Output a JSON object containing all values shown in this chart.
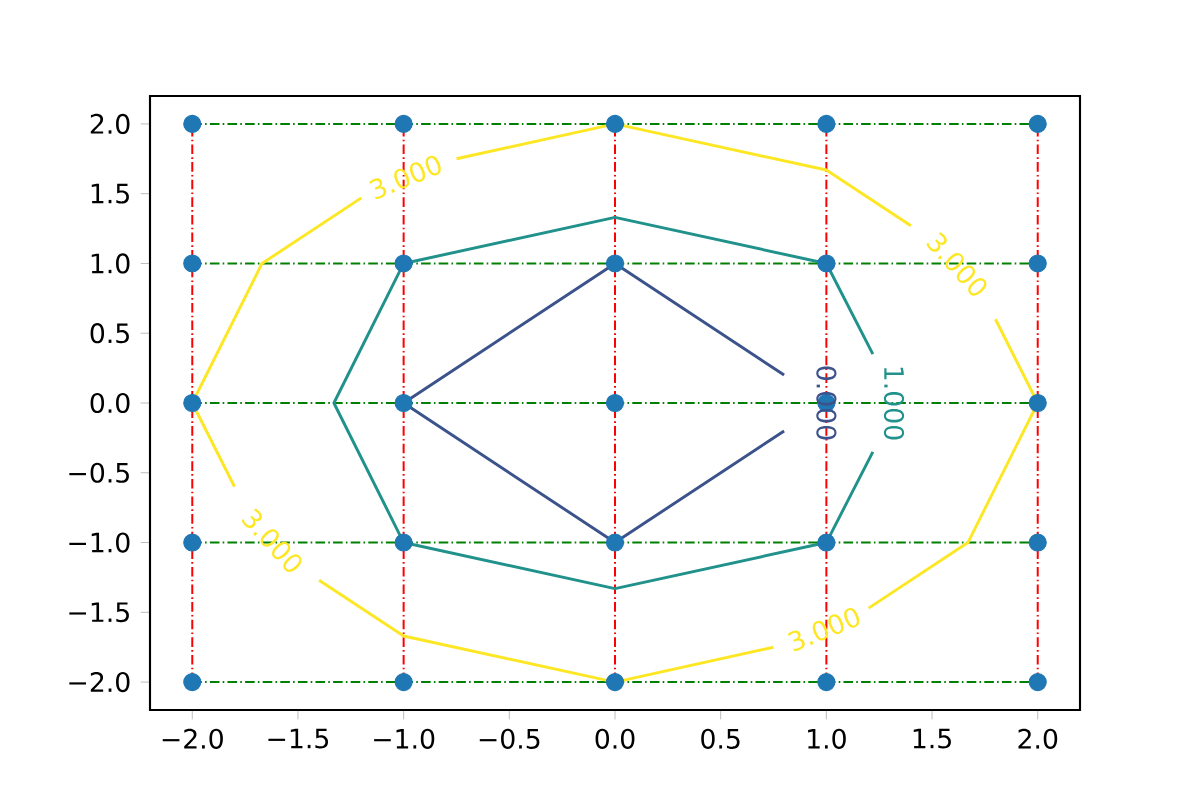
{
  "chart_data": {
    "type": "line",
    "xlim": [
      -2.2,
      2.2
    ],
    "ylim": [
      -2.2,
      2.2
    ],
    "xticks": [
      {
        "value": -2.0,
        "label": "−2.0"
      },
      {
        "value": -1.5,
        "label": "−1.5"
      },
      {
        "value": -1.0,
        "label": "−1.0"
      },
      {
        "value": -0.5,
        "label": "−0.5"
      },
      {
        "value": 0.0,
        "label": "0.0"
      },
      {
        "value": 0.5,
        "label": "0.5"
      },
      {
        "value": 1.0,
        "label": "1.0"
      },
      {
        "value": 1.5,
        "label": "1.5"
      },
      {
        "value": 2.0,
        "label": "2.0"
      }
    ],
    "yticks": [
      {
        "value": -2.0,
        "label": "−2.0"
      },
      {
        "value": -1.5,
        "label": "−1.5"
      },
      {
        "value": -1.0,
        "label": "−1.0"
      },
      {
        "value": -0.5,
        "label": "−0.5"
      },
      {
        "value": 0.0,
        "label": "0.0"
      },
      {
        "value": 0.5,
        "label": "0.5"
      },
      {
        "value": 1.0,
        "label": "1.0"
      },
      {
        "value": 1.5,
        "label": "1.5"
      },
      {
        "value": 2.0,
        "label": "2.0"
      }
    ],
    "grid": false,
    "series": [
      {
        "color": "#ff0000",
        "line_style": "dashdot",
        "x": [
          -2,
          -2
        ],
        "values": [
          -2,
          2
        ]
      },
      {
        "color": "#ff0000",
        "line_style": "dashdot",
        "x": [
          -1,
          -1
        ],
        "values": [
          -2,
          2
        ]
      },
      {
        "color": "#ff0000",
        "line_style": "dashdot",
        "x": [
          0,
          0
        ],
        "values": [
          -2,
          2
        ]
      },
      {
        "color": "#ff0000",
        "line_style": "dashdot",
        "x": [
          1,
          1
        ],
        "values": [
          -2,
          2
        ]
      },
      {
        "color": "#ff0000",
        "line_style": "dashdot",
        "x": [
          2,
          2
        ],
        "values": [
          -2,
          2
        ]
      },
      {
        "color": "#008000",
        "line_style": "dashdot",
        "x": [
          -2,
          2
        ],
        "values": [
          -2,
          -2
        ]
      },
      {
        "color": "#008000",
        "line_style": "dashdot",
        "x": [
          -2,
          2
        ],
        "values": [
          -1,
          -1
        ]
      },
      {
        "color": "#008000",
        "line_style": "dashdot",
        "x": [
          -2,
          2
        ],
        "values": [
          0,
          0
        ]
      },
      {
        "color": "#008000",
        "line_style": "dashdot",
        "x": [
          -2,
          2
        ],
        "values": [
          1,
          1
        ]
      },
      {
        "color": "#008000",
        "line_style": "dashdot",
        "x": [
          -2,
          2
        ],
        "values": [
          2,
          2
        ]
      },
      {
        "color": "#3b528b",
        "line_style": "solid",
        "x": [
          0.8,
          0,
          -1,
          0,
          0.8
        ],
        "values": [
          0.2,
          1,
          0,
          -1,
          -0.2
        ]
      },
      {
        "color": "#21918c",
        "line_style": "solid",
        "x": [
          1.22,
          1,
          0,
          -1,
          -1.33,
          -1,
          0,
          1,
          1.22
        ],
        "values": [
          0.35,
          1,
          1.33,
          1,
          0,
          -1,
          -1.33,
          -1,
          -0.35
        ]
      },
      {
        "color": "#fde725",
        "line_style": "solid",
        "x": [
          -0.75,
          0,
          1,
          1.4,
          1.6,
          1.8,
          2,
          1.67,
          1.2,
          1.0,
          0.75,
          0,
          -1,
          -1.4,
          -1.6,
          -1.8,
          -2,
          -1.67,
          -1.2
        ],
        "values": [
          1.75,
          2,
          1.67,
          1.27,
          null,
          0.6,
          0,
          -1,
          -1.47,
          null,
          -1.75,
          -2,
          -1.67,
          -1.27,
          null,
          -0.6,
          0,
          1,
          1.47
        ]
      },
      {
        "type": "scatter",
        "color": "#1f77b4",
        "marker": "circle",
        "x": [
          -2,
          -1,
          0,
          1,
          2,
          -2,
          -1,
          0,
          1,
          2,
          -2,
          -1,
          0,
          1,
          2,
          -2,
          -1,
          0,
          1,
          2,
          -2,
          -1,
          0,
          1,
          2
        ],
        "values": [
          -2,
          -2,
          -2,
          -2,
          -2,
          -1,
          -1,
          -1,
          -1,
          -1,
          0,
          0,
          0,
          0,
          0,
          1,
          1,
          1,
          1,
          1,
          2,
          2,
          2,
          2,
          2
        ]
      }
    ],
    "annotations": [
      {
        "text": "0.000",
        "x": 1.0,
        "y": 0.0
      },
      {
        "text": "1.000",
        "x": 1.32,
        "y": 0.0
      },
      {
        "text": "3.000",
        "x": -0.99,
        "y": 1.62
      },
      {
        "text": "3.000",
        "x": 1.62,
        "y": 0.99
      },
      {
        "text": "3.000",
        "x": -1.62,
        "y": -0.99
      },
      {
        "text": "3.000",
        "x": 0.99,
        "y": -1.62
      }
    ]
  }
}
